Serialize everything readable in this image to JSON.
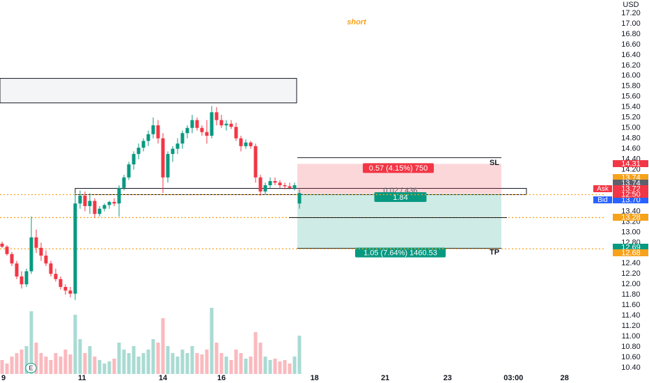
{
  "chart_data": {
    "type": "candlestick",
    "currency": "USD",
    "annotation": "short",
    "event_marker": "E",
    "up_color": "#089981",
    "down_color": "#f23645",
    "open": [
      12.78,
      12.72,
      12.58,
      12.4,
      12.15,
      12.0,
      12.25,
      12.9,
      12.7,
      12.55,
      12.4,
      12.2,
      12.1,
      11.95,
      11.88,
      11.82,
      13.55,
      13.7,
      13.5,
      13.6,
      13.35,
      13.45,
      13.52,
      13.58,
      13.55,
      13.85,
      14.05,
      14.3,
      14.5,
      14.62,
      14.75,
      14.88,
      15.05,
      14.8,
      14.05,
      14.5,
      14.6,
      14.7,
      14.9,
      15.0,
      15.15,
      15.0,
      14.92,
      14.85,
      15.3,
      15.15,
      15.05,
      15.08,
      15.02,
      14.8,
      14.65,
      14.72,
      14.65,
      14.05,
      13.78,
      13.9,
      13.98,
      13.95,
      13.9,
      13.88,
      13.85,
      13.55
    ],
    "high": [
      12.82,
      12.75,
      12.62,
      12.45,
      12.25,
      12.3,
      13.3,
      13.05,
      12.8,
      12.65,
      12.45,
      12.3,
      12.15,
      12.0,
      11.95,
      13.75,
      13.8,
      13.78,
      13.75,
      13.65,
      13.5,
      13.55,
      13.6,
      13.65,
      13.9,
      14.1,
      14.35,
      14.55,
      14.7,
      14.8,
      14.95,
      15.2,
      15.15,
      14.9,
      14.55,
      14.65,
      14.8,
      14.95,
      15.05,
      15.25,
      15.2,
      15.05,
      15.15,
      15.42,
      15.4,
      15.25,
      15.15,
      15.15,
      15.1,
      14.85,
      14.78,
      14.75,
      14.7,
      14.1,
      13.95,
      14.05,
      14.05,
      14.0,
      13.95,
      13.95,
      13.95,
      13.82
    ],
    "low": [
      12.7,
      12.55,
      12.35,
      12.1,
      11.92,
      11.95,
      12.2,
      12.6,
      12.45,
      12.35,
      12.15,
      12.05,
      11.9,
      11.8,
      11.75,
      11.7,
      13.45,
      13.4,
      13.35,
      13.28,
      13.3,
      13.4,
      13.45,
      13.5,
      13.3,
      13.8,
      14.0,
      14.2,
      14.4,
      14.55,
      14.65,
      14.8,
      14.7,
      13.75,
      13.95,
      14.35,
      14.5,
      14.6,
      14.8,
      14.9,
      14.95,
      14.85,
      14.7,
      14.8,
      15.05,
      15.0,
      14.95,
      14.98,
      14.75,
      14.55,
      14.6,
      14.6,
      13.95,
      13.7,
      13.72,
      13.85,
      13.9,
      13.85,
      13.82,
      13.82,
      13.8,
      13.45
    ],
    "close": [
      12.72,
      12.58,
      12.4,
      12.15,
      12.0,
      12.25,
      12.9,
      12.7,
      12.55,
      12.4,
      12.2,
      12.1,
      11.95,
      11.88,
      11.82,
      13.55,
      13.7,
      13.5,
      13.6,
      13.35,
      13.45,
      13.52,
      13.58,
      13.55,
      13.85,
      14.05,
      14.3,
      14.5,
      14.62,
      14.75,
      14.88,
      15.05,
      14.8,
      14.05,
      14.5,
      14.6,
      14.7,
      14.9,
      15.0,
      15.15,
      15.0,
      14.92,
      14.85,
      15.3,
      15.15,
      15.05,
      15.08,
      15.02,
      14.8,
      14.65,
      14.72,
      14.65,
      14.05,
      13.78,
      13.9,
      13.98,
      13.95,
      13.9,
      13.88,
      13.85,
      13.9,
      13.75
    ],
    "volume": [
      20,
      15,
      25,
      30,
      35,
      40,
      90,
      45,
      30,
      25,
      20,
      30,
      25,
      35,
      28,
      85,
      50,
      30,
      40,
      25,
      20,
      15,
      18,
      22,
      45,
      35,
      30,
      40,
      25,
      30,
      35,
      50,
      45,
      80,
      40,
      30,
      25,
      35,
      30,
      40,
      30,
      28,
      35,
      95,
      45,
      30,
      25,
      20,
      35,
      30,
      22,
      25,
      60,
      45,
      25,
      20,
      22,
      18,
      20,
      15,
      25,
      55
    ],
    "xlim": [
      -0.43,
      123.86
    ],
    "xticks": [
      {
        "value": 0.3,
        "label": "9"
      },
      {
        "value": 16.4,
        "label": "11"
      },
      {
        "value": 33,
        "label": "14"
      },
      {
        "value": 45,
        "label": "16"
      },
      {
        "value": 64.1,
        "label": "18"
      },
      {
        "value": 78.6,
        "label": "21"
      },
      {
        "value": 91.4,
        "label": "23"
      },
      {
        "value": 104.9,
        "label": "03:00"
      },
      {
        "value": 115.4,
        "label": "28"
      }
    ],
    "ylim": [
      10.28,
      17.454
    ],
    "yticks": [
      {
        "value": 17.2,
        "label": "17.20"
      },
      {
        "value": 17.0,
        "label": "17.00"
      },
      {
        "value": 16.8,
        "label": "16.80"
      },
      {
        "value": 16.6,
        "label": "16.60"
      },
      {
        "value": 16.4,
        "label": "16.40"
      },
      {
        "value": 16.2,
        "label": "16.20"
      },
      {
        "value": 16.0,
        "label": "16.00"
      },
      {
        "value": 15.8,
        "label": "15.80"
      },
      {
        "value": 15.6,
        "label": "15.60"
      },
      {
        "value": 15.4,
        "label": "15.40"
      },
      {
        "value": 15.2,
        "label": "15.20"
      },
      {
        "value": 15.0,
        "label": "15.00"
      },
      {
        "value": 14.8,
        "label": "14.80"
      },
      {
        "value": 14.6,
        "label": "14.60"
      },
      {
        "value": 14.4,
        "label": "14.40"
      },
      {
        "value": 14.2,
        "label": "14.20"
      },
      {
        "value": 13.4,
        "label": "13.40"
      },
      {
        "value": 13.2,
        "label": "13.20"
      },
      {
        "value": 13.0,
        "label": "13.00"
      },
      {
        "value": 12.8,
        "label": "12.80"
      },
      {
        "value": 12.4,
        "label": "12.40"
      },
      {
        "value": 12.2,
        "label": "12.20"
      },
      {
        "value": 12.0,
        "label": "12.00"
      },
      {
        "value": 11.8,
        "label": "11.80"
      },
      {
        "value": 11.6,
        "label": "11.60"
      },
      {
        "value": 11.4,
        "label": "11.40"
      },
      {
        "value": 11.2,
        "label": "11.20"
      },
      {
        "value": 11.0,
        "label": "11.00"
      },
      {
        "value": 10.8,
        "label": "10.80"
      },
      {
        "value": 10.6,
        "label": "10.60"
      },
      {
        "value": 10.4,
        "label": "10.40"
      }
    ],
    "grid": false,
    "zones": [
      {
        "top": 15.95,
        "bottom": 15.48
      },
      {
        "top": 13.84,
        "bottom": 13.72
      }
    ],
    "levels": [
      13.72,
      13.28,
      12.68
    ],
    "level_color": "#f7a21b",
    "horizontal_line": 13.28,
    "position": {
      "entry": 13.74,
      "stop": 14.31,
      "target": 12.69,
      "stop_label": "0.57 (4.15%) 750",
      "entry_label": "0.02 / 436",
      "ratio": 1.84,
      "target_label": "1.05 (7.64%) 1460.53",
      "stop_name": "SL",
      "target_name": "TP"
    },
    "price_tags": [
      {
        "label": "14.31",
        "value": 14.31,
        "color": "#f23645"
      },
      {
        "label": "13.74",
        "value": 13.74,
        "color": "#f7a21b"
      },
      {
        "label": "13.74",
        "value": 13.74,
        "color": "#5d606b"
      },
      {
        "label": "13.72",
        "value": 13.72,
        "color": "#f23645",
        "name": "Ask"
      },
      {
        "label": "13.70",
        "value": 13.7,
        "color": "#2962ff",
        "name": "Bid"
      },
      {
        "label": "13.28",
        "value": 13.28,
        "color": "#f7a21b"
      },
      {
        "label": "12.69",
        "value": 12.69,
        "color": "#089981"
      },
      {
        "label": "12.68",
        "value": 12.68,
        "color": "#f7a21b"
      }
    ],
    "countdown": "12:50"
  }
}
